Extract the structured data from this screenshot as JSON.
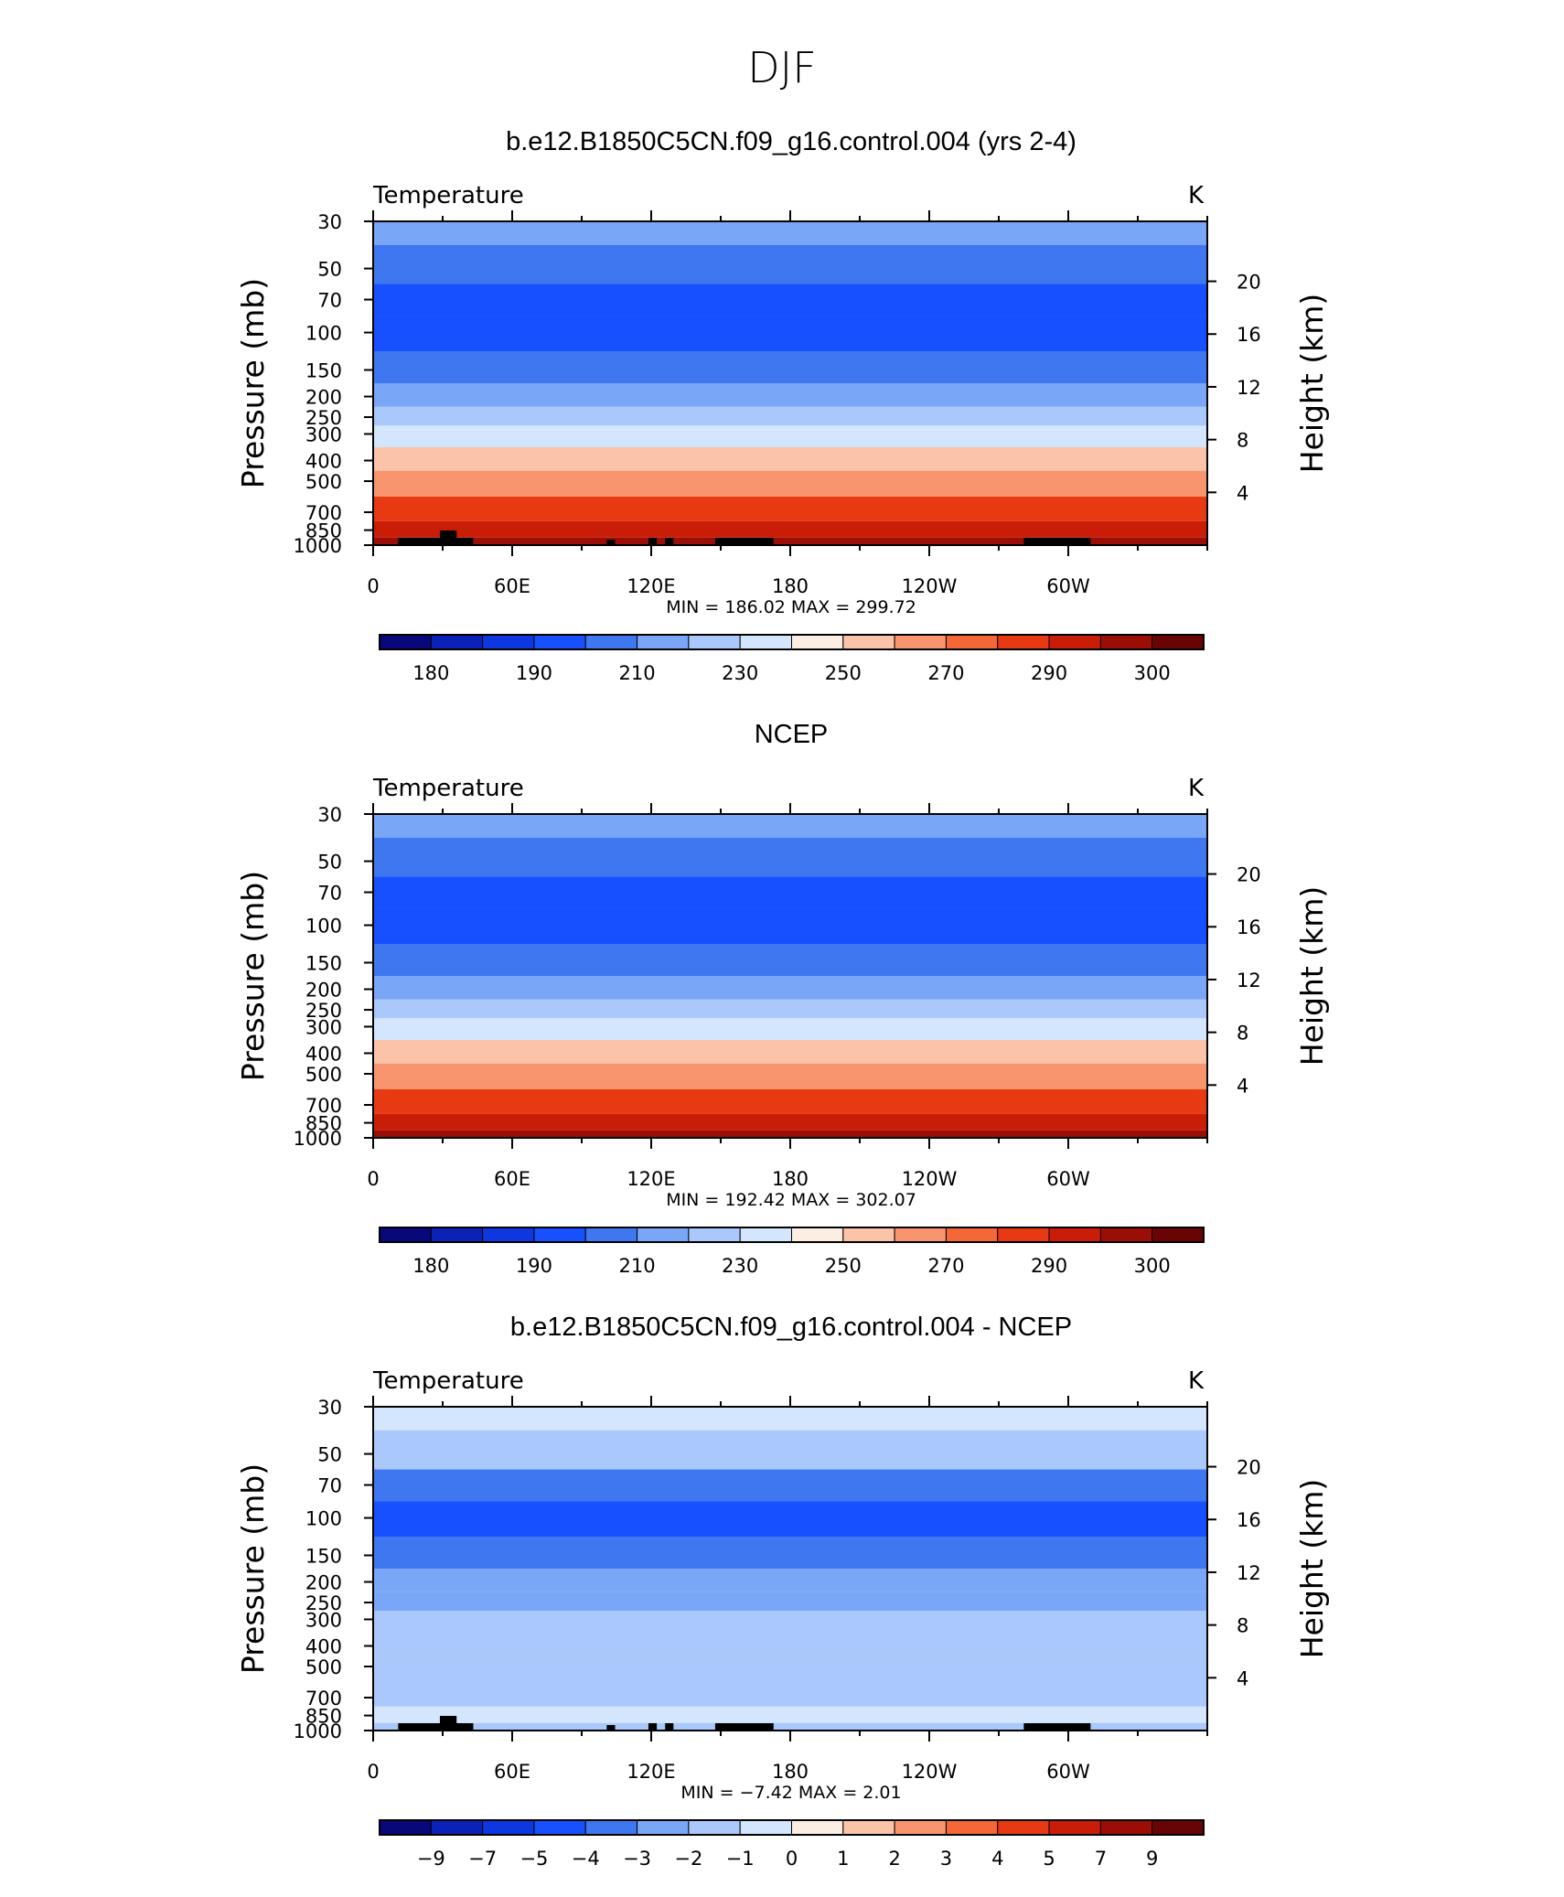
{
  "figure": {
    "title": "DJF"
  },
  "colors": {
    "cmap": [
      "#08087a",
      "#0a22b8",
      "#0d37e0",
      "#1650ff",
      "#3f77f0",
      "#7aa6f7",
      "#aac8fb",
      "#d3e6fd",
      "#fdeee4",
      "#fbc4a8",
      "#f8956f",
      "#f46736",
      "#e83a12",
      "#c91d08",
      "#9b0e06",
      "#690404"
    ],
    "land": "#000000",
    "frame": "#000000"
  },
  "chart_data": [
    {
      "type": "heatmap",
      "title": "b.e12.B1850C5CN.f09_g16.control.004 (yrs 2-4)",
      "left_label": "Temperature",
      "right_label": "K",
      "ylabel": "Pressure  (mb)",
      "y2label": "Height  (km)",
      "x_ticks": [
        "0",
        "60E",
        "120E",
        "180",
        "120W",
        "60W"
      ],
      "y_ticks": [
        "30",
        "50",
        "70",
        "100",
        "150",
        "200",
        "250",
        "300",
        "400",
        "500",
        "700",
        "850",
        "1000"
      ],
      "y2_ticks": [
        "20",
        "16",
        "12",
        "8",
        "4"
      ],
      "stats": "MIN =  186.02   MAX =  299.72",
      "levels": [
        "180",
        "190",
        "210",
        "230",
        "250",
        "270",
        "290",
        "300"
      ],
      "layers": [
        {
          "p": 30,
          "v": 215
        },
        {
          "p": 50,
          "v": 209
        },
        {
          "p": 70,
          "v": 203
        },
        {
          "p": 100,
          "v": 199
        },
        {
          "p": 150,
          "v": 207
        },
        {
          "p": 200,
          "v": 217
        },
        {
          "p": 250,
          "v": 226
        },
        {
          "p": 300,
          "v": 235
        },
        {
          "p": 400,
          "v": 250
        },
        {
          "p": 500,
          "v": 262
        },
        {
          "p": 700,
          "v": 277
        },
        {
          "p": 850,
          "v": 286
        },
        {
          "p": 1000,
          "v": 295
        }
      ],
      "min": 186.02,
      "max": 299.72
    },
    {
      "type": "heatmap",
      "title": "NCEP",
      "left_label": "Temperature",
      "right_label": "K",
      "ylabel": "Pressure  (mb)",
      "y2label": "Height  (km)",
      "x_ticks": [
        "0",
        "60E",
        "120E",
        "180",
        "120W",
        "60W"
      ],
      "y_ticks": [
        "30",
        "50",
        "70",
        "100",
        "150",
        "200",
        "250",
        "300",
        "400",
        "500",
        "700",
        "850",
        "1000"
      ],
      "y2_ticks": [
        "20",
        "16",
        "12",
        "8",
        "4"
      ],
      "stats": "MIN =  192.42   MAX =  302.07",
      "levels": [
        "180",
        "190",
        "210",
        "230",
        "250",
        "270",
        "290",
        "300"
      ],
      "layers": [
        {
          "p": 30,
          "v": 216
        },
        {
          "p": 50,
          "v": 210
        },
        {
          "p": 70,
          "v": 205
        },
        {
          "p": 100,
          "v": 202
        },
        {
          "p": 150,
          "v": 210
        },
        {
          "p": 200,
          "v": 219
        },
        {
          "p": 250,
          "v": 228
        },
        {
          "p": 300,
          "v": 237
        },
        {
          "p": 400,
          "v": 252
        },
        {
          "p": 500,
          "v": 264
        },
        {
          "p": 700,
          "v": 279
        },
        {
          "p": 850,
          "v": 288
        },
        {
          "p": 1000,
          "v": 297
        }
      ],
      "min": 192.42,
      "max": 302.07
    },
    {
      "type": "heatmap",
      "title": "b.e12.B1850C5CN.f09_g16.control.004 - NCEP",
      "left_label": "Temperature",
      "right_label": "K",
      "ylabel": "Pressure  (mb)",
      "y2label": "Height  (km)",
      "x_ticks": [
        "0",
        "60E",
        "120E",
        "180",
        "120W",
        "60W"
      ],
      "y_ticks": [
        "30",
        "50",
        "70",
        "100",
        "150",
        "200",
        "250",
        "300",
        "400",
        "500",
        "700",
        "850",
        "1000"
      ],
      "y2_ticks": [
        "20",
        "16",
        "12",
        "8",
        "4"
      ],
      "stats": "MIN =    −7.42   MAX =     2.01",
      "levels": [
        "−9",
        "−7",
        "−5",
        "−4",
        "−3",
        "−2",
        "−1",
        "0",
        "1",
        "2",
        "3",
        "4",
        "5",
        "7",
        "9"
      ],
      "layers": [
        {
          "p": 30,
          "v": -1.0
        },
        {
          "p": 50,
          "v": -2.0
        },
        {
          "p": 70,
          "v": -3.5
        },
        {
          "p": 100,
          "v": -4.5
        },
        {
          "p": 150,
          "v": -3.5
        },
        {
          "p": 200,
          "v": -3.0
        },
        {
          "p": 250,
          "v": -2.5
        },
        {
          "p": 300,
          "v": -2.0
        },
        {
          "p": 400,
          "v": -1.8
        },
        {
          "p": 500,
          "v": -1.5
        },
        {
          "p": 700,
          "v": -1.3
        },
        {
          "p": 850,
          "v": -0.5
        },
        {
          "p": 1000,
          "v": -1.5
        }
      ],
      "min": -7.42,
      "max": 2.01
    }
  ]
}
